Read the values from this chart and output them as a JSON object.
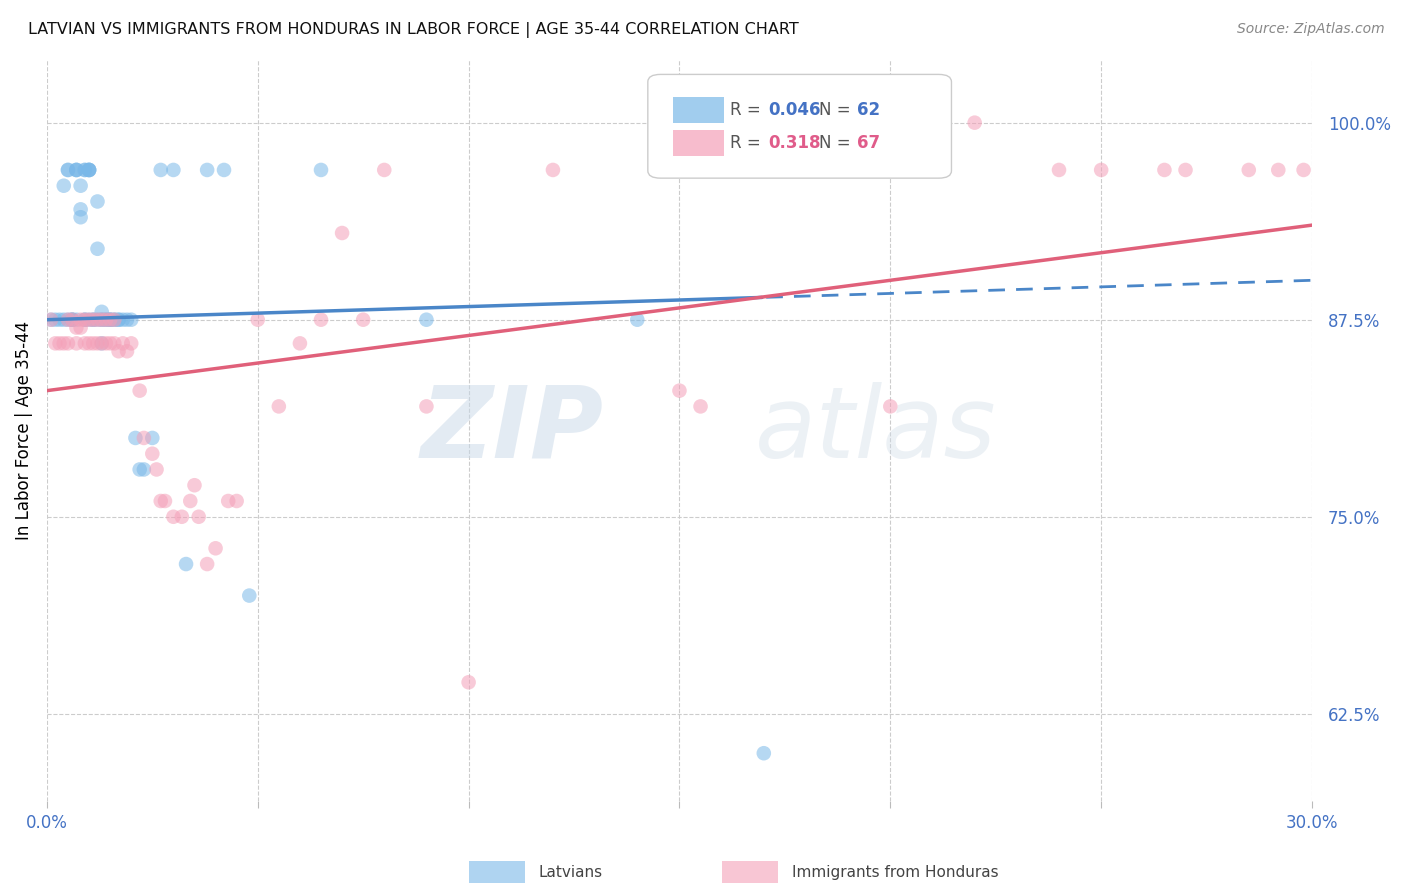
{
  "title": "LATVIAN VS IMMIGRANTS FROM HONDURAS IN LABOR FORCE | AGE 35-44 CORRELATION CHART",
  "source": "Source: ZipAtlas.com",
  "ylabel": "In Labor Force | Age 35-44",
  "xlim": [
    0.0,
    0.3
  ],
  "ylim": [
    0.57,
    1.04
  ],
  "xticks": [
    0.0,
    0.05,
    0.1,
    0.15,
    0.2,
    0.25,
    0.3
  ],
  "xtick_labels": [
    "0.0%",
    "",
    "",
    "",
    "",
    "",
    "30.0%"
  ],
  "yticks": [
    0.625,
    0.75,
    0.875,
    1.0
  ],
  "ytick_labels": [
    "62.5%",
    "75.0%",
    "87.5%",
    "100.0%"
  ],
  "legend_blue_r": "0.046",
  "legend_blue_n": "62",
  "legend_pink_r": "0.318",
  "legend_pink_n": "67",
  "blue_color": "#7ab8e8",
  "pink_color": "#f4a0b8",
  "blue_line_color": "#4a86c8",
  "pink_line_color": "#e0607a",
  "watermark_zip": "ZIP",
  "watermark_atlas": "atlas",
  "blue_scatter_x": [
    0.001,
    0.002,
    0.003,
    0.004,
    0.004,
    0.005,
    0.005,
    0.005,
    0.006,
    0.006,
    0.006,
    0.007,
    0.007,
    0.007,
    0.007,
    0.008,
    0.008,
    0.008,
    0.009,
    0.009,
    0.009,
    0.009,
    0.01,
    0.01,
    0.01,
    0.01,
    0.01,
    0.011,
    0.011,
    0.012,
    0.012,
    0.012,
    0.013,
    0.013,
    0.013,
    0.013,
    0.014,
    0.014,
    0.015,
    0.015,
    0.015,
    0.016,
    0.016,
    0.017,
    0.017,
    0.018,
    0.019,
    0.02,
    0.021,
    0.022,
    0.023,
    0.025,
    0.027,
    0.03,
    0.033,
    0.038,
    0.042,
    0.048,
    0.065,
    0.09,
    0.14,
    0.17
  ],
  "blue_scatter_y": [
    0.875,
    0.875,
    0.875,
    0.96,
    0.875,
    0.97,
    0.97,
    0.875,
    0.875,
    0.875,
    0.875,
    0.97,
    0.97,
    0.97,
    0.875,
    0.96,
    0.945,
    0.94,
    0.97,
    0.97,
    0.875,
    0.875,
    0.97,
    0.97,
    0.97,
    0.97,
    0.875,
    0.875,
    0.875,
    0.95,
    0.92,
    0.875,
    0.88,
    0.875,
    0.875,
    0.86,
    0.875,
    0.875,
    0.875,
    0.875,
    0.875,
    0.875,
    0.875,
    0.875,
    0.875,
    0.875,
    0.875,
    0.875,
    0.8,
    0.78,
    0.78,
    0.8,
    0.97,
    0.97,
    0.72,
    0.97,
    0.97,
    0.7,
    0.97,
    0.875,
    0.875,
    0.6
  ],
  "pink_scatter_x": [
    0.001,
    0.002,
    0.003,
    0.004,
    0.005,
    0.005,
    0.006,
    0.007,
    0.007,
    0.008,
    0.008,
    0.009,
    0.009,
    0.01,
    0.01,
    0.011,
    0.011,
    0.012,
    0.012,
    0.013,
    0.013,
    0.014,
    0.014,
    0.015,
    0.015,
    0.016,
    0.016,
    0.017,
    0.018,
    0.019,
    0.02,
    0.022,
    0.023,
    0.025,
    0.026,
    0.027,
    0.028,
    0.03,
    0.032,
    0.034,
    0.035,
    0.036,
    0.038,
    0.04,
    0.043,
    0.045,
    0.05,
    0.055,
    0.06,
    0.065,
    0.07,
    0.075,
    0.08,
    0.09,
    0.1,
    0.12,
    0.15,
    0.155,
    0.2,
    0.22,
    0.24,
    0.25,
    0.265,
    0.27,
    0.285,
    0.292,
    0.298
  ],
  "pink_scatter_y": [
    0.875,
    0.86,
    0.86,
    0.86,
    0.875,
    0.86,
    0.875,
    0.87,
    0.86,
    0.87,
    0.875,
    0.875,
    0.86,
    0.875,
    0.86,
    0.875,
    0.86,
    0.875,
    0.86,
    0.875,
    0.86,
    0.875,
    0.86,
    0.875,
    0.86,
    0.875,
    0.86,
    0.855,
    0.86,
    0.855,
    0.86,
    0.83,
    0.8,
    0.79,
    0.78,
    0.76,
    0.76,
    0.75,
    0.75,
    0.76,
    0.77,
    0.75,
    0.72,
    0.73,
    0.76,
    0.76,
    0.875,
    0.82,
    0.86,
    0.875,
    0.93,
    0.875,
    0.97,
    0.82,
    0.645,
    0.97,
    0.83,
    0.82,
    0.82,
    1.0,
    0.97,
    0.97,
    0.97,
    0.97,
    0.97,
    0.97,
    0.97
  ]
}
